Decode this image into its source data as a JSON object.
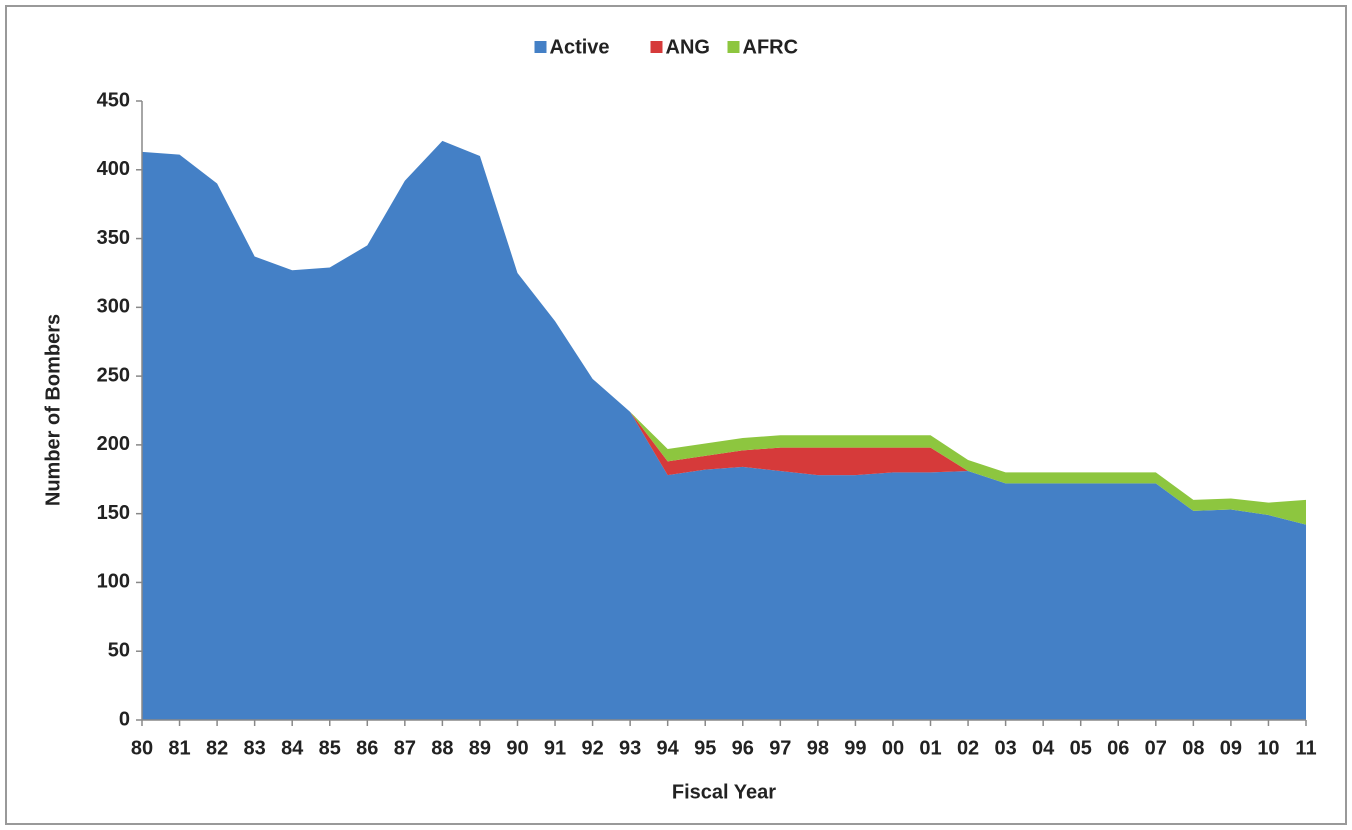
{
  "chart_data": {
    "type": "area",
    "stacked": true,
    "x_label": "Fiscal Year",
    "y_label": "Number of Bombers",
    "categories": [
      "80",
      "81",
      "82",
      "83",
      "84",
      "85",
      "86",
      "87",
      "88",
      "89",
      "90",
      "91",
      "92",
      "93",
      "94",
      "95",
      "96",
      "97",
      "98",
      "99",
      "00",
      "01",
      "02",
      "03",
      "04",
      "05",
      "06",
      "07",
      "08",
      "09",
      "10",
      "11"
    ],
    "series": [
      {
        "name": "Active",
        "color": "#4480c6",
        "values": [
          413,
          411,
          390,
          337,
          327,
          329,
          345,
          392,
          421,
          410,
          325,
          290,
          248,
          224,
          178,
          182,
          184,
          181,
          178,
          178,
          180,
          180,
          181,
          172,
          172,
          172,
          172,
          172,
          152,
          153,
          149,
          142
        ]
      },
      {
        "name": "ANG",
        "color": "#d63a3a",
        "values": [
          0,
          0,
          0,
          0,
          0,
          0,
          0,
          0,
          0,
          0,
          0,
          0,
          0,
          0,
          10,
          10,
          12,
          17,
          20,
          20,
          18,
          18,
          0,
          0,
          0,
          0,
          0,
          0,
          0,
          0,
          0,
          0
        ]
      },
      {
        "name": "AFRC",
        "color": "#8dc63f",
        "values": [
          0,
          0,
          0,
          0,
          0,
          0,
          0,
          0,
          0,
          0,
          0,
          0,
          0,
          0,
          9,
          9,
          9,
          9,
          9,
          9,
          9,
          9,
          8,
          8,
          8,
          8,
          8,
          8,
          8,
          8,
          9,
          18
        ]
      }
    ],
    "ylim": [
      0,
      450
    ],
    "yticks": [
      0,
      50,
      100,
      150,
      200,
      250,
      300,
      350,
      400,
      450
    ],
    "grid": false,
    "legend": "top"
  }
}
